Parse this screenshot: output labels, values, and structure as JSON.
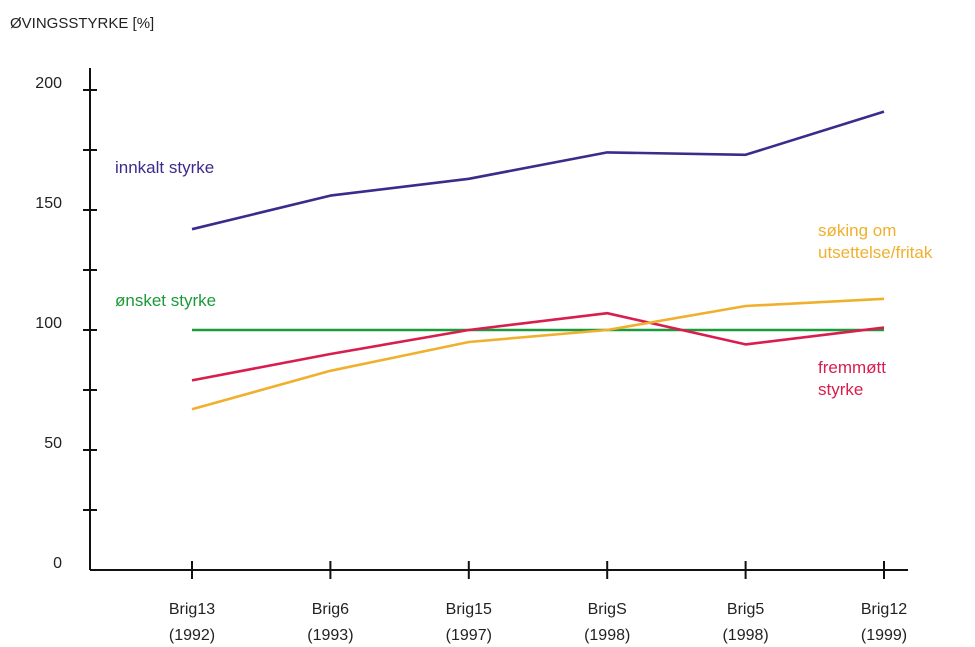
{
  "chart_data": {
    "type": "line",
    "ylabel": "ØVINGSSTYRKE [%]",
    "xlabel": "",
    "ylim": [
      0,
      200
    ],
    "yticks": [
      "0",
      "50",
      "100",
      "150",
      "200"
    ],
    "categories": [
      {
        "name": "Brig13",
        "year": "(1992)"
      },
      {
        "name": "Brig6",
        "year": "(1993)"
      },
      {
        "name": "Brig15",
        "year": "(1997)"
      },
      {
        "name": "BrigS",
        "year": "(1998)"
      },
      {
        "name": "Brig5",
        "year": "(1998)"
      },
      {
        "name": "Brig12",
        "year": "(1999)"
      }
    ],
    "series": [
      {
        "name": "innkalt styrke",
        "label_lines": [
          "innkalt styrke"
        ],
        "color": "#3d2a8a",
        "values": [
          142,
          156,
          163,
          174,
          173,
          191
        ]
      },
      {
        "name": "ønsket styrke",
        "label_lines": [
          "ønsket styrke"
        ],
        "color": "#1a9a3a",
        "values": [
          100,
          100,
          100,
          100,
          100,
          100
        ]
      },
      {
        "name": "fremmøtt styrke",
        "label_lines": [
          "fremmøtt",
          "styrke"
        ],
        "color": "#d81e4f",
        "values": [
          79,
          90,
          100,
          107,
          94,
          101
        ]
      },
      {
        "name": "søking om utsettelse/fritak",
        "label_lines": [
          "søking om",
          "utsettelse/fritak"
        ],
        "color": "#f0b02e",
        "values": [
          67,
          83,
          95,
          100,
          110,
          113
        ]
      }
    ],
    "grid": false,
    "legend": "inline labels"
  }
}
